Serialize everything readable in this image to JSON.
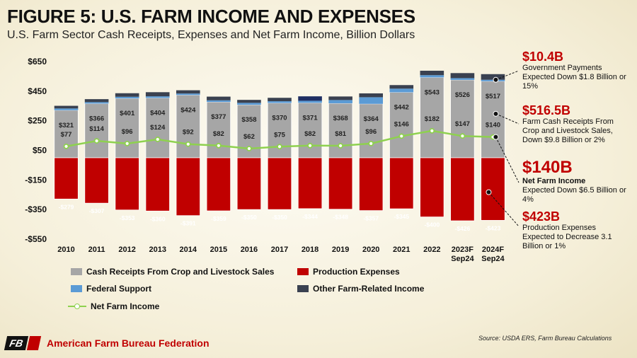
{
  "header": {
    "title": "FIGURE 5: U.S. FARM INCOME AND EXPENSES",
    "subtitle": "U.S. Farm Sector Cash Receipts, Expenses and Net Farm Income, Billion Dollars"
  },
  "colors": {
    "cash_receipts": "#a6a6a6",
    "production_expenses": "#c00000",
    "federal_support": "#5b9bd5",
    "other_income": "#3a4150",
    "net_income": "#8ed14f",
    "highlight": "#c00000"
  },
  "chart_data": {
    "type": "bar",
    "stacked": true,
    "categories": [
      "2010",
      "2011",
      "2012",
      "2013",
      "2014",
      "2015",
      "2016",
      "2017",
      "2018",
      "2019",
      "2020",
      "2021",
      "2022",
      "2023F",
      "2024F"
    ],
    "category_sublabels": [
      "",
      "",
      "",
      "",
      "",
      "",
      "",
      "",
      "",
      "",
      "",
      "",
      "",
      "Sep24",
      "Sep24"
    ],
    "ylim": [
      -550,
      650
    ],
    "yticks": [
      650,
      450,
      250,
      50,
      -150,
      -350,
      -550
    ],
    "ytick_labels": [
      "$650",
      "$450",
      "$250",
      "$50",
      "-$150",
      "-$350",
      "-$550"
    ],
    "series": [
      {
        "name": "Cash Receipts From Crop and Livestock Sales",
        "type": "bar",
        "values": [
          321,
          366,
          401,
          404,
          424,
          377,
          358,
          370,
          371,
          368,
          364,
          442,
          543,
          526,
          517
        ],
        "labels": [
          "$321",
          "$366",
          "$401",
          "$404",
          "$424",
          "$377",
          "$358",
          "$370",
          "$371",
          "$368",
          "$364",
          "$442",
          "$543",
          "$526",
          "$517"
        ]
      },
      {
        "name": "Federal Support",
        "type": "bar",
        "values": [
          12,
          10,
          11,
          11,
          10,
          11,
          13,
          12,
          14,
          22,
          45,
          25,
          15,
          12,
          10
        ]
      },
      {
        "name": "Other Farm-Related Income",
        "type": "bar",
        "values": [
          18,
          20,
          24,
          28,
          22,
          25,
          20,
          23,
          30,
          24,
          26,
          24,
          30,
          34,
          38
        ]
      },
      {
        "name": "Production Expenses",
        "type": "bar",
        "values": [
          -279,
          -307,
          -353,
          -360,
          -391,
          -359,
          -350,
          -350,
          -344,
          -348,
          -357,
          -345,
          -400,
          -426,
          -423
        ],
        "labels": [
          "-$279",
          "-$307",
          "-$353",
          "-$360",
          "-$391",
          "-$359",
          "-$350",
          "-$350",
          "-$344",
          "-$348",
          "-$357",
          "-$345",
          "-$400",
          "-$426",
          "-$423"
        ]
      },
      {
        "name": "Net Farm Income",
        "type": "line",
        "values": [
          77,
          114,
          96,
          124,
          92,
          82,
          62,
          75,
          82,
          81,
          96,
          146,
          182,
          147,
          140
        ],
        "labels": [
          "$77",
          "$114",
          "$96",
          "$124",
          "$92",
          "$82",
          "$62",
          "$75",
          "$82",
          "$81",
          "$96",
          "$146",
          "$182",
          "$147",
          "$140"
        ]
      }
    ],
    "legend_position": "bottom"
  },
  "annotations": [
    {
      "value": "$10.4B",
      "text": "Government Payments Expected Down $1.8 Billion or 15%"
    },
    {
      "value": "$516.5B",
      "text": "Farm Cash Receipts From Crop and Livestock Sales, Down $9.8 Billion or 2%"
    },
    {
      "value": "$140B",
      "label": "Net Farm Income",
      "text": "Expected Down $6.5 Billion or 4%"
    },
    {
      "value": "$423B",
      "text": "Production Expenses Expected to Decrease 3.1 Billion or 1%"
    }
  ],
  "legend": {
    "items": [
      "Cash Receipts From Crop and Livestock Sales",
      "Production Expenses",
      "Federal Support",
      "Other Farm-Related Income",
      "Net Farm Income"
    ]
  },
  "footer": {
    "source": "Source: USDA ERS, Farm Bureau Calculations",
    "org": "American Farm Bureau Federation",
    "logo_text": "FB"
  }
}
